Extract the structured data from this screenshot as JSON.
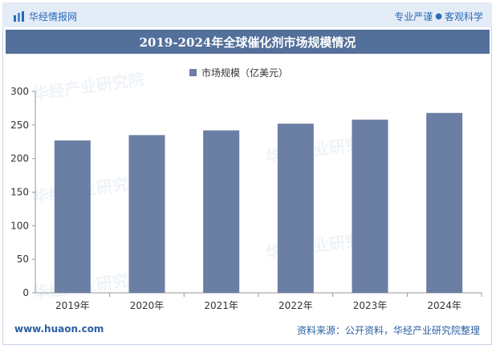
{
  "header": {
    "brand_name": "华经情报网",
    "tagline_left": "专业严谨",
    "tagline_sep": "●",
    "tagline_right": "客观科学"
  },
  "watermark_text": "华经产业研究院",
  "footer": {
    "website": "www.huaon.com",
    "source": "资料来源：公开资料，华经产业研究院整理"
  },
  "colors": {
    "bar": "#6b7ea3",
    "title_bar": "#53709b",
    "header_bg": "#e4ecf7",
    "brand_blue": "#2a6ab6"
  },
  "chart_data": {
    "type": "bar",
    "title": "2019-2024年全球催化剂市场规模情况",
    "categories": [
      "2019年",
      "2020年",
      "2021年",
      "2022年",
      "2023年",
      "2024年"
    ],
    "series": [
      {
        "name": "市场规模（亿美元）",
        "values": [
          227,
          235,
          242,
          252,
          258,
          268
        ]
      }
    ],
    "ylim": [
      0,
      300
    ],
    "yticks": [
      0,
      50,
      100,
      150,
      200,
      250,
      300
    ],
    "xlabel": "",
    "ylabel": "",
    "legend_position": "top-center",
    "grid": false
  }
}
